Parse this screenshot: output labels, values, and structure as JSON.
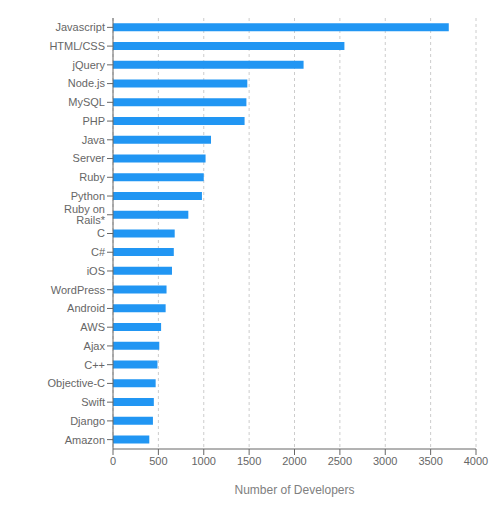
{
  "chart_data": {
    "type": "bar",
    "orientation": "horizontal",
    "categories": [
      "Amazon",
      "Django",
      "Swift",
      "Objective-C",
      "C++",
      "Ajax",
      "AWS",
      "Android",
      "WordPress",
      "iOS",
      "C#",
      "C",
      "Ruby on Rails*",
      "Python",
      "Ruby",
      "Server",
      "Java",
      "PHP",
      "MySQL",
      "Node.js",
      "jQuery",
      "HTML/CSS",
      "Javascript"
    ],
    "values": [
      400,
      440,
      450,
      470,
      490,
      510,
      530,
      580,
      590,
      650,
      670,
      680,
      830,
      980,
      1000,
      1020,
      1080,
      1450,
      1470,
      1480,
      2100,
      2550,
      3700
    ],
    "color": "#2196F3",
    "xlabel": "Number of Developers",
    "xlim": [
      0,
      4000
    ],
    "xticks": [
      0,
      500,
      1000,
      1500,
      2000,
      2500,
      3000,
      3500,
      4000
    ],
    "grid": true
  }
}
